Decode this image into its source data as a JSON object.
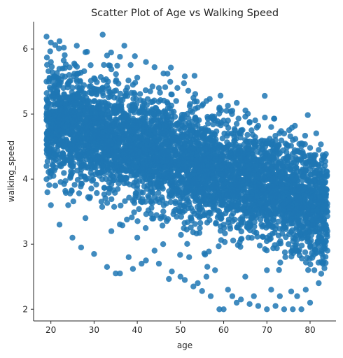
{
  "chart_data": {
    "type": "scatter",
    "title": "Scatter Plot of Age vs Walking Speed",
    "xlabel": "age",
    "ylabel": "walking_speed",
    "xlim": [
      16,
      86
    ],
    "ylim": [
      1.82,
      6.42
    ],
    "xticks": [
      20,
      30,
      40,
      50,
      60,
      70,
      80
    ],
    "yticks": [
      2,
      3,
      4,
      5,
      6
    ],
    "grid": false,
    "legend": "none",
    "series": [
      {
        "color": "#1f77b4",
        "points": [
          [
            19,
            6.19
          ],
          [
            21,
            6.06
          ],
          [
            22,
            6.12
          ],
          [
            26,
            6.05
          ],
          [
            32,
            6.22
          ],
          [
            37,
            6.05
          ],
          [
            20,
            6.1
          ],
          [
            23,
            6.02
          ],
          [
            28,
            5.95
          ],
          [
            33,
            5.9
          ],
          [
            42,
            5.8
          ],
          [
            44,
            5.72
          ],
          [
            47,
            5.62
          ],
          [
            51,
            5.58
          ],
          [
            40,
            5.56
          ],
          [
            36,
            5.88
          ],
          [
            45,
            5.4
          ],
          [
            48,
            5.3
          ],
          [
            53,
            5.25
          ],
          [
            56,
            5.2
          ],
          [
            59,
            5.1
          ],
          [
            62,
            5.05
          ],
          [
            65,
            4.96
          ],
          [
            66,
            4.88
          ],
          [
            68,
            4.82
          ],
          [
            71,
            4.8
          ],
          [
            74,
            4.7
          ],
          [
            76,
            4.6
          ],
          [
            78,
            4.55
          ],
          [
            80,
            4.48
          ],
          [
            82,
            4.45
          ],
          [
            82,
            4.2
          ],
          [
            83,
            3.6
          ],
          [
            84,
            3.2
          ],
          [
            83,
            2.8
          ],
          [
            82,
            2.4
          ],
          [
            80,
            2.1
          ],
          [
            78,
            2.0
          ],
          [
            76,
            2.0
          ],
          [
            74,
            2.0
          ],
          [
            72,
            2.05
          ],
          [
            70,
            2.0
          ],
          [
            68,
            2.05
          ],
          [
            66,
            2.08
          ],
          [
            64,
            2.15
          ],
          [
            62,
            2.2
          ],
          [
            60,
            2.0
          ],
          [
            59,
            2.0
          ],
          [
            57,
            2.2
          ],
          [
            55,
            2.28
          ],
          [
            53,
            2.35
          ],
          [
            51,
            2.45
          ],
          [
            48,
            2.58
          ],
          [
            45,
            2.7
          ],
          [
            42,
            2.75
          ],
          [
            39,
            2.62
          ],
          [
            36,
            2.55
          ],
          [
            35,
            2.55
          ],
          [
            33,
            2.65
          ],
          [
            30,
            2.85
          ],
          [
            27,
            2.95
          ],
          [
            25,
            3.1
          ],
          [
            22,
            3.3
          ],
          [
            20,
            3.6
          ],
          [
            19,
            4.2
          ],
          [
            19,
            4.6
          ],
          [
            19,
            5.0
          ],
          [
            19,
            5.5
          ],
          [
            20,
            5.8
          ],
          [
            60,
            4.9
          ],
          [
            63,
            4.85
          ],
          [
            65,
            4.6
          ],
          [
            67,
            4.55
          ],
          [
            69,
            4.45
          ],
          [
            73,
            4.4
          ],
          [
            75,
            4.35
          ],
          [
            77,
            4.3
          ],
          [
            79,
            4.25
          ],
          [
            81,
            4.1
          ],
          [
            75,
            3.0
          ],
          [
            70,
            2.6
          ],
          [
            65,
            2.5
          ],
          [
            58,
            2.6
          ],
          [
            52,
            2.8
          ],
          [
            46,
            3.0
          ],
          [
            40,
            3.1
          ],
          [
            34,
            3.2
          ],
          [
            28,
            3.4
          ],
          [
            24,
            3.6
          ],
          [
            21,
            3.9
          ],
          [
            38,
            2.8
          ],
          [
            41,
            2.7
          ],
          [
            44,
            2.9
          ],
          [
            50,
            2.5
          ],
          [
            54,
            2.4
          ],
          [
            56,
            2.5
          ],
          [
            61,
            2.3
          ],
          [
            63,
            2.1
          ],
          [
            67,
            2.2
          ],
          [
            71,
            2.3
          ],
          [
            73,
            2.2
          ],
          [
            77,
            2.2
          ],
          [
            79,
            2.3
          ],
          [
            81,
            2.6
          ],
          [
            84,
            2.9
          ],
          [
            84,
            3.5
          ],
          [
            83,
            3.9
          ],
          [
            30,
            5.55
          ],
          [
            35,
            5.5
          ],
          [
            39,
            5.45
          ],
          [
            43,
            5.35
          ],
          [
            49,
            5.2
          ],
          [
            54,
            5.1
          ],
          [
            57,
            4.95
          ],
          [
            61,
            4.9
          ],
          [
            64,
            4.75
          ],
          [
            70,
            4.55
          ],
          [
            72,
            4.6
          ],
          [
            78,
            4.4
          ],
          [
            80,
            4.3
          ],
          [
            82,
            3.8
          ],
          [
            55,
            4.0
          ],
          [
            45,
            4.2
          ],
          [
            35,
            4.5
          ],
          [
            25,
            4.8
          ],
          [
            65,
            3.8
          ],
          [
            75,
            3.5
          ],
          [
            50,
            3.6
          ],
          [
            40,
            3.9
          ],
          [
            60,
            3.3
          ],
          [
            70,
            3.1
          ],
          [
            30,
            4.2
          ],
          [
            48,
            4.6
          ],
          [
            58,
            4.3
          ],
          [
            68,
            4.0
          ]
        ]
      }
    ]
  }
}
